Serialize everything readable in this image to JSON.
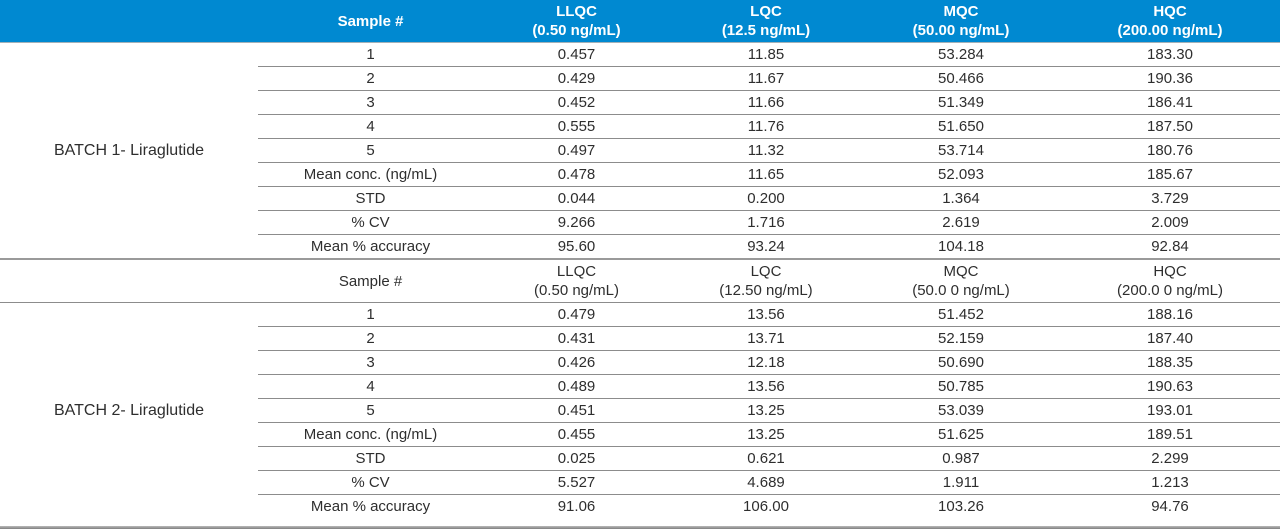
{
  "colors": {
    "header_bg": "#0089D1",
    "header_text": "#FFFFFF",
    "body_text": "#2E2E2E",
    "row_line": "#8C8C8C",
    "section_divider": "#9A9A9A",
    "bottom_bar": "#7F7F7F"
  },
  "table": {
    "sections": [
      {
        "batch_label": "BATCH 1- Liraglutide",
        "header": {
          "sample_col": "Sample #",
          "qc_cols": [
            {
              "name": "LLQC",
              "conc": "(0.50 ng/mL)"
            },
            {
              "name": "LQC",
              "conc": "(12.5 ng/mL)"
            },
            {
              "name": "MQC",
              "conc": "(50.00 ng/mL)"
            },
            {
              "name": "HQC",
              "conc": "(200.00 ng/mL)"
            }
          ]
        },
        "rows": [
          {
            "label": "1",
            "values": [
              "0.457",
              "11.85",
              "53.284",
              "183.30"
            ]
          },
          {
            "label": "2",
            "values": [
              "0.429",
              "11.67",
              "50.466",
              "190.36"
            ]
          },
          {
            "label": "3",
            "values": [
              "0.452",
              "11.66",
              "51.349",
              "186.41"
            ]
          },
          {
            "label": "4",
            "values": [
              "0.555",
              "11.76",
              "51.650",
              "187.50"
            ]
          },
          {
            "label": "5",
            "values": [
              "0.497",
              "11.32",
              "53.714",
              "180.76"
            ]
          },
          {
            "label": "Mean conc. (ng/mL)",
            "values": [
              "0.478",
              "11.65",
              "52.093",
              "185.67"
            ]
          },
          {
            "label": "STD",
            "values": [
              "0.044",
              "0.200",
              "1.364",
              "3.729"
            ]
          },
          {
            "label": "% CV",
            "values": [
              "9.266",
              "1.716",
              "2.619",
              "2.009"
            ]
          },
          {
            "label": "Mean % accuracy",
            "values": [
              "95.60",
              "93.24",
              "104.18",
              "92.84"
            ]
          }
        ]
      },
      {
        "batch_label": "BATCH 2- Liraglutide",
        "header": {
          "sample_col": "Sample #",
          "qc_cols": [
            {
              "name": "LLQC",
              "conc": "(0.50 ng/mL)"
            },
            {
              "name": "LQC",
              "conc": "(12.50 ng/mL)"
            },
            {
              "name": "MQC",
              "conc": "(50.0 0 ng/mL)"
            },
            {
              "name": "HQC",
              "conc": "(200.0 0 ng/mL)"
            }
          ]
        },
        "rows": [
          {
            "label": "1",
            "values": [
              "0.479",
              "13.56",
              "51.452",
              "188.16"
            ]
          },
          {
            "label": "2",
            "values": [
              "0.431",
              "13.71",
              "52.159",
              "187.40"
            ]
          },
          {
            "label": "3",
            "values": [
              "0.426",
              "12.18",
              "50.690",
              "188.35"
            ]
          },
          {
            "label": "4",
            "values": [
              "0.489",
              "13.56",
              "50.785",
              "190.63"
            ]
          },
          {
            "label": "5",
            "values": [
              "0.451",
              "13.25",
              "53.039",
              "193.01"
            ]
          },
          {
            "label": "Mean conc. (ng/mL)",
            "values": [
              "0.455",
              "13.25",
              "51.625",
              "189.51"
            ]
          },
          {
            "label": "STD",
            "values": [
              "0.025",
              "0.621",
              "0.987",
              "2.299"
            ]
          },
          {
            "label": "% CV",
            "values": [
              "5.527",
              "4.689",
              "1.911",
              "1.213"
            ]
          },
          {
            "label": "Mean % accuracy",
            "values": [
              "91.06",
              "106.00",
              "103.26",
              "94.76"
            ]
          }
        ]
      }
    ]
  }
}
